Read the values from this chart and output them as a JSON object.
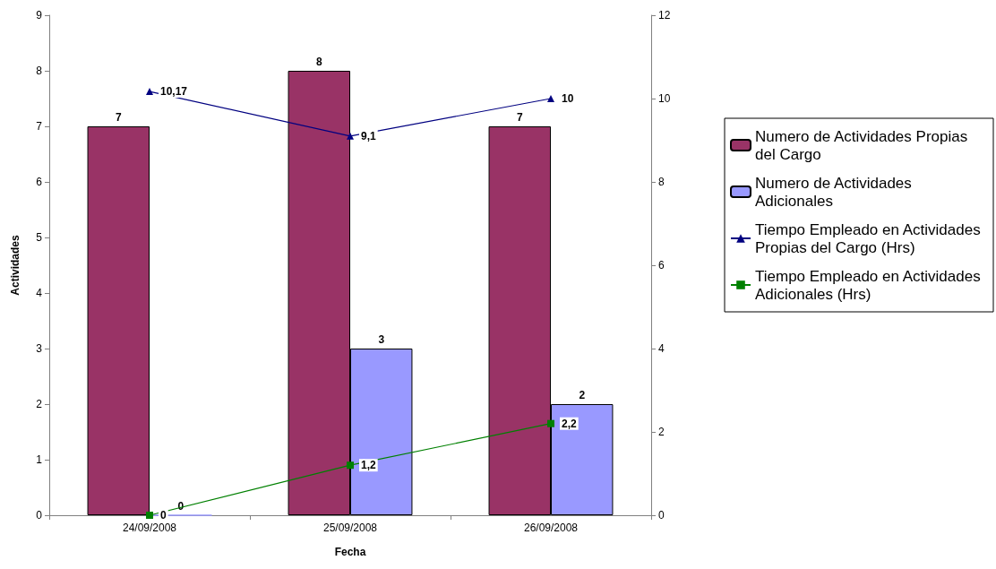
{
  "chart_data": {
    "type": "bar",
    "xlabel": "Fecha",
    "ylabel": "Actividades",
    "categories": [
      "24/09/2008",
      "25/09/2008",
      "26/09/2008"
    ],
    "series": [
      {
        "name": "Numero de Actividades Propias del Cargo",
        "color": "#993366",
        "values": [
          7,
          8,
          7
        ],
        "value_labels": [
          "7",
          "8",
          "7"
        ]
      },
      {
        "name": "Numero de Actividades Adicionales",
        "color": "#9999ff",
        "values": [
          0,
          3,
          2
        ],
        "value_labels": [
          "0",
          "3",
          "2"
        ]
      },
      {
        "name": "Tiempo Empleado en Actividades Propias del Cargo (Hrs)",
        "type": "line",
        "axis": "y2",
        "marker": "triangle",
        "color": "#000080",
        "values": [
          10.17,
          9.1,
          10
        ],
        "value_labels": [
          "10,17",
          "9,1",
          "10"
        ]
      },
      {
        "name": "Tiempo Empleado en Actividades Adicionales (Hrs)",
        "type": "line",
        "axis": "y2",
        "marker": "square",
        "color": "#008000",
        "values": [
          0,
          1.2,
          2.2
        ],
        "value_labels": [
          "0",
          "1,2",
          "2,2"
        ]
      }
    ],
    "ylim": [
      0,
      9
    ],
    "yticks": [
      0,
      1,
      2,
      3,
      4,
      5,
      6,
      7,
      8,
      9
    ],
    "y2lim": [
      0,
      12
    ],
    "y2ticks": [
      0,
      2,
      4,
      6,
      8,
      10,
      12
    ],
    "grid": false,
    "legend": "right",
    "line_style": "solid"
  }
}
